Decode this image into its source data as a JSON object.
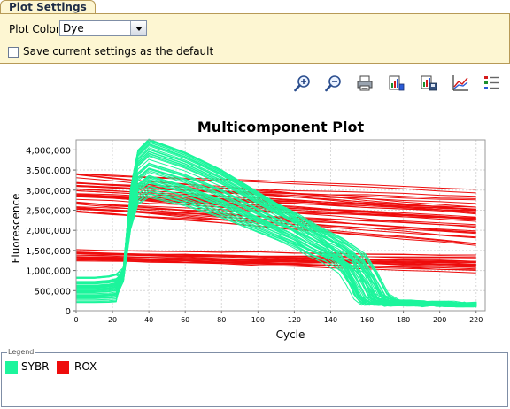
{
  "panel": {
    "tab_title": "Plot Settings"
  },
  "settings": {
    "plot_color_label": "Plot Color",
    "plot_color_value": "Dye",
    "save_default_label": "Save current settings as the default",
    "save_default_checked": false
  },
  "toolbar": {
    "buttons": [
      {
        "icon": "zoom-in-icon"
      },
      {
        "icon": "zoom-out-icon"
      },
      {
        "icon": "print-icon"
      },
      {
        "icon": "export-data-icon"
      },
      {
        "icon": "save-image-icon"
      },
      {
        "icon": "plot-properties-icon"
      },
      {
        "icon": "legend-toggle-icon"
      }
    ]
  },
  "legend": {
    "title": "Legend",
    "items": [
      {
        "name": "SYBR",
        "color": "#1cf59c"
      },
      {
        "name": "ROX",
        "color": "#ee0c0c"
      }
    ]
  },
  "chart_data": {
    "type": "line",
    "title": "Multicomponent Plot",
    "xlabel": "Cycle",
    "ylabel": "Fluorescence",
    "xlim": [
      0,
      225
    ],
    "ylim": [
      0,
      4250000
    ],
    "xticks": [
      0,
      20,
      40,
      60,
      80,
      100,
      120,
      140,
      160,
      180,
      200,
      220
    ],
    "yticks": [
      0,
      500000,
      1000000,
      1500000,
      2000000,
      2500000,
      3000000,
      3500000,
      4000000
    ],
    "ytick_labels": [
      "0",
      "500,000",
      "1,000,000",
      "1,500,000",
      "2,000,000",
      "2,500,000",
      "3,000,000",
      "3,500,000",
      "4,000,000"
    ],
    "grid": true,
    "legend_position": "bottom",
    "series": [
      {
        "name": "SYBR",
        "color": "#1cf59c",
        "x": [
          0,
          10,
          18,
          22,
          26,
          30,
          34,
          40,
          50,
          60,
          70,
          80,
          90,
          100,
          110,
          120,
          130,
          140,
          150,
          155,
          160,
          165,
          170,
          180,
          190,
          200,
          210,
          220
        ],
        "y": [
          500000,
          500000,
          520000,
          550000,
          1000000,
          2800000,
          3650000,
          3900000,
          3750000,
          3600000,
          3400000,
          3200000,
          2950000,
          2700000,
          2450000,
          2200000,
          1900000,
          1650000,
          1300000,
          900000,
          400000,
          220000,
          200000,
          180000,
          170000,
          160000,
          155000,
          150000
        ]
      },
      {
        "name": "ROX",
        "color": "#ee0c0c",
        "x": [
          0,
          220
        ],
        "y": [
          2950000,
          2400000
        ]
      }
    ]
  }
}
